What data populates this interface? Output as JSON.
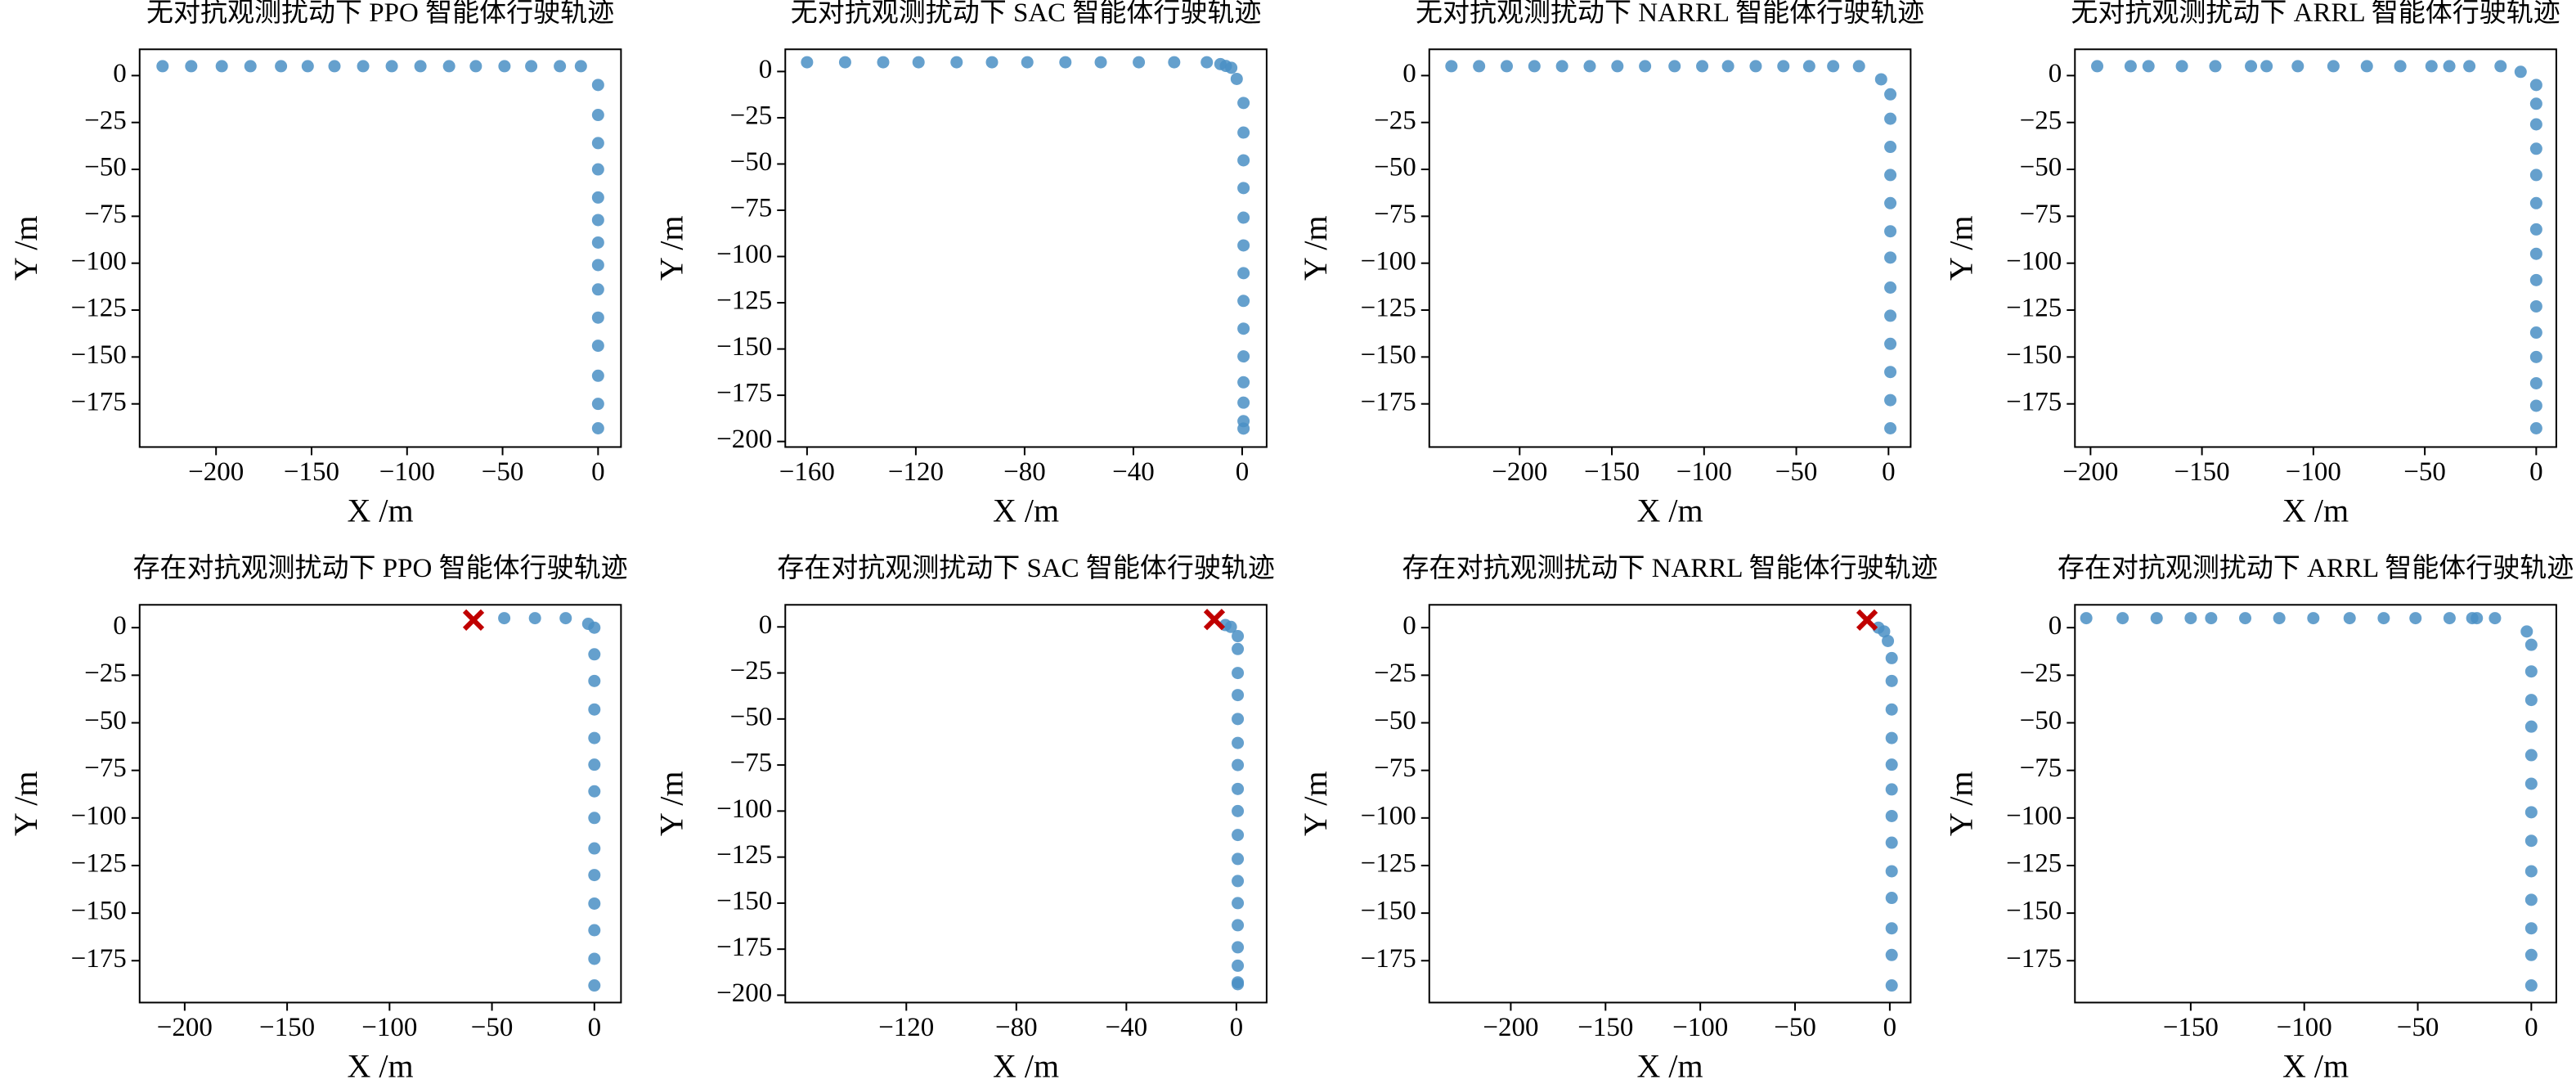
{
  "chart_data": [
    {
      "type": "scatter",
      "title": "无对抗观测扰动下 PPO 智能体行驶轨迹",
      "x_label": "X /m",
      "y_label": "Y /m",
      "xlim": [
        -240,
        12
      ],
      "ylim": [
        -198,
        14
      ],
      "xticks": [
        {
          "value": -200,
          "label": "−200"
        },
        {
          "value": -150,
          "label": "−150"
        },
        {
          "value": -100,
          "label": "−100"
        },
        {
          "value": -50,
          "label": "−50"
        },
        0
      ],
      "yticks": [
        0,
        {
          "value": -25,
          "label": "−25"
        },
        {
          "value": -50,
          "label": "−50"
        },
        {
          "value": -75,
          "label": "−75"
        },
        {
          "value": -100,
          "label": "−100"
        },
        {
          "value": -125,
          "label": "−125"
        },
        {
          "value": -150,
          "label": "−150"
        },
        {
          "value": -175,
          "label": "−175"
        }
      ],
      "series": [
        {
          "color": "#4a8fc4",
          "marker": "o",
          "x": [
            -228,
            -213,
            -197,
            -182,
            -166,
            -152,
            -138,
            -123,
            -108,
            -93,
            -78,
            -64,
            -49,
            -35,
            -20,
            -9,
            0,
            0,
            0,
            0,
            0,
            0,
            0,
            0,
            0,
            0,
            0,
            0,
            0,
            0
          ],
          "values": [
            5,
            5,
            5,
            5,
            5,
            5,
            5,
            5,
            5,
            5,
            5,
            5,
            5,
            5,
            5,
            5,
            -5,
            -21,
            -36,
            -50,
            -65,
            -77,
            -89,
            -101,
            -114,
            -129,
            -144,
            -160,
            -175,
            -188
          ]
        }
      ]
    },
    {
      "type": "scatter",
      "title": "无对抗观测扰动下 SAC 智能体行驶轨迹",
      "x_label": "X /m",
      "y_label": "Y /m",
      "xlim": [
        -168,
        9
      ],
      "ylim": [
        -203,
        12
      ],
      "xticks": [
        {
          "value": -160,
          "label": "−160"
        },
        {
          "value": -120,
          "label": "−120"
        },
        {
          "value": -80,
          "label": "−80"
        },
        {
          "value": -40,
          "label": "−40"
        },
        0
      ],
      "yticks": [
        0,
        {
          "value": -25,
          "label": "−25"
        },
        {
          "value": -50,
          "label": "−50"
        },
        {
          "value": -75,
          "label": "−75"
        },
        {
          "value": -100,
          "label": "−100"
        },
        {
          "value": -125,
          "label": "−125"
        },
        {
          "value": -150,
          "label": "−150"
        },
        {
          "value": -175,
          "label": "−175"
        },
        {
          "value": -200,
          "label": "−200"
        }
      ],
      "series": [
        {
          "color": "#4a8fc4",
          "marker": "o",
          "x": [
            -160,
            -146,
            -132,
            -119,
            -105,
            -92,
            -79,
            -65,
            -52,
            -38,
            -25,
            -13,
            -8,
            -6,
            -4,
            -2,
            0.5,
            0.5,
            0.5,
            0.5,
            0.5,
            0.5,
            0.5,
            0.5,
            0.5,
            0.5,
            0.5,
            0.5,
            0.5,
            0.5
          ],
          "values": [
            5,
            5,
            5,
            5,
            5,
            5,
            5,
            5,
            5,
            5,
            5,
            5,
            4,
            3,
            2,
            -4,
            -17,
            -33,
            -48,
            -63,
            -79,
            -94,
            -109,
            -124,
            -139,
            -154,
            -168,
            -179,
            -189,
            -193
          ]
        }
      ]
    },
    {
      "type": "scatter",
      "title": "无对抗观测扰动下 NARRL 智能体行驶轨迹",
      "x_label": "X /m",
      "y_label": "Y /m",
      "xlim": [
        -249,
        12
      ],
      "ylim": [
        -198,
        14
      ],
      "xticks": [
        {
          "value": -200,
          "label": "−200"
        },
        {
          "value": -150,
          "label": "−150"
        },
        {
          "value": -100,
          "label": "−100"
        },
        {
          "value": -50,
          "label": "−50"
        },
        0
      ],
      "yticks": [
        0,
        {
          "value": -25,
          "label": "−25"
        },
        {
          "value": -50,
          "label": "−50"
        },
        {
          "value": -75,
          "label": "−75"
        },
        {
          "value": -100,
          "label": "−100"
        },
        {
          "value": -125,
          "label": "−125"
        },
        {
          "value": -150,
          "label": "−150"
        },
        {
          "value": -175,
          "label": "−175"
        }
      ],
      "series": [
        {
          "color": "#4a8fc4",
          "marker": "o",
          "x": [
            -237,
            -222,
            -207,
            -192,
            -177,
            -162,
            -147,
            -132,
            -116,
            -101,
            -87,
            -72,
            -57,
            -43,
            -30,
            -16,
            -4,
            1,
            1,
            1,
            1,
            1,
            1,
            1,
            1,
            1,
            1,
            1,
            1,
            1
          ],
          "values": [
            5,
            5,
            5,
            5,
            5,
            5,
            5,
            5,
            5,
            5,
            5,
            5,
            5,
            5,
            5,
            5,
            -2,
            -10,
            -23,
            -38,
            -53,
            -68,
            -83,
            -97,
            -113,
            -128,
            -143,
            -158,
            -173,
            -188
          ]
        }
      ]
    },
    {
      "type": "scatter",
      "title": "无对抗观测扰动下 ARRL 智能体行驶轨迹",
      "x_label": "X /m",
      "y_label": "Y /m",
      "xlim": [
        -207,
        9
      ],
      "ylim": [
        -198,
        14
      ],
      "xticks": [
        {
          "value": -200,
          "label": "−200"
        },
        {
          "value": -150,
          "label": "−150"
        },
        {
          "value": -100,
          "label": "−100"
        },
        {
          "value": -50,
          "label": "−50"
        },
        0
      ],
      "yticks": [
        0,
        {
          "value": -25,
          "label": "−25"
        },
        {
          "value": -50,
          "label": "−50"
        },
        {
          "value": -75,
          "label": "−75"
        },
        {
          "value": -100,
          "label": "−100"
        },
        {
          "value": -125,
          "label": "−125"
        },
        {
          "value": -150,
          "label": "−150"
        },
        {
          "value": -175,
          "label": "−175"
        }
      ],
      "series": [
        {
          "color": "#4a8fc4",
          "marker": "o",
          "x": [
            -197,
            -182,
            -174,
            -159,
            -144,
            -128,
            -121,
            -107,
            -91,
            -76,
            -61,
            -47,
            -39,
            -30,
            -16,
            -7,
            0,
            0,
            0,
            0,
            0,
            0,
            0,
            0,
            0,
            0,
            0,
            0,
            0,
            0,
            0
          ],
          "values": [
            5,
            5,
            5,
            5,
            5,
            5,
            5,
            5,
            5,
            5,
            5,
            5,
            5,
            5,
            5,
            2,
            -5,
            -15,
            -26,
            -39,
            -53,
            -68,
            -82,
            -95,
            -109,
            -123,
            -137,
            -150,
            -164,
            -176,
            -188
          ]
        }
      ]
    },
    {
      "type": "scatter",
      "title": "存在对抗观测扰动下 PPO 智能体行驶轨迹",
      "x_label": "X /m",
      "y_label": "Y /m",
      "xlim": [
        -222,
        13
      ],
      "ylim": [
        -197,
        12
      ],
      "xticks": [
        {
          "value": -200,
          "label": "−200"
        },
        {
          "value": -150,
          "label": "−150"
        },
        {
          "value": -100,
          "label": "−100"
        },
        {
          "value": -50,
          "label": "−50"
        },
        0
      ],
      "yticks": [
        0,
        {
          "value": -25,
          "label": "−25"
        },
        {
          "value": -50,
          "label": "−50"
        },
        {
          "value": -75,
          "label": "−75"
        },
        {
          "value": -100,
          "label": "−100"
        },
        {
          "value": -125,
          "label": "−125"
        },
        {
          "value": -150,
          "label": "−150"
        },
        {
          "value": -175,
          "label": "−175"
        }
      ],
      "series": [
        {
          "color": "#4a8fc4",
          "marker": "o",
          "x": [
            -44,
            -29,
            -14,
            -3,
            0,
            0,
            0,
            0,
            0,
            0,
            0,
            0,
            0,
            0,
            0,
            0,
            0,
            0
          ],
          "values": [
            5,
            5,
            5,
            2,
            0,
            -14,
            -28,
            -43,
            -58,
            -72,
            -86,
            -100,
            -116,
            -130,
            -145,
            -159,
            -174,
            -188
          ]
        },
        {
          "color": "#c00000",
          "marker": "x",
          "x": [
            -59
          ],
          "values": [
            4
          ]
        }
      ]
    },
    {
      "type": "scatter",
      "title": "存在对抗观测扰动下 SAC 智能体行驶轨迹",
      "x_label": "X /m",
      "y_label": "Y /m",
      "xlim": [
        -164,
        11
      ],
      "ylim": [
        -204,
        12
      ],
      "xticks": [
        {
          "value": -120,
          "label": "−120"
        },
        {
          "value": -80,
          "label": "−80"
        },
        {
          "value": -40,
          "label": "−40"
        },
        0
      ],
      "yticks": [
        0,
        {
          "value": -25,
          "label": "−25"
        },
        {
          "value": -50,
          "label": "−50"
        },
        {
          "value": -75,
          "label": "−75"
        },
        {
          "value": -100,
          "label": "−100"
        },
        {
          "value": -125,
          "label": "−125"
        },
        {
          "value": -150,
          "label": "−150"
        },
        {
          "value": -175,
          "label": "−175"
        },
        {
          "value": -200,
          "label": "−200"
        }
      ],
      "series": [
        {
          "color": "#4a8fc4",
          "marker": "o",
          "x": [
            -4,
            -2,
            0.5,
            0.5,
            0.5,
            0.5,
            0.5,
            0.5,
            0.5,
            0.5,
            0.5,
            0.5,
            0.5,
            0.5,
            0.5,
            0.5,
            0.5,
            0.5,
            0.5,
            0.5
          ],
          "values": [
            1,
            0,
            -5,
            -12,
            -25,
            -37,
            -50,
            -63,
            -75,
            -88,
            -100,
            -113,
            -126,
            -138,
            -150,
            -162,
            -174,
            -184,
            -193,
            -194
          ]
        },
        {
          "color": "#c00000",
          "marker": "x",
          "x": [
            -8
          ],
          "values": [
            4
          ]
        }
      ]
    },
    {
      "type": "scatter",
      "title": "存在对抗观测扰动下 NARRL 智能体行驶轨迹",
      "x_label": "X /m",
      "y_label": "Y /m",
      "xlim": [
        -243,
        11
      ],
      "ylim": [
        -197,
        12
      ],
      "xticks": [
        {
          "value": -200,
          "label": "−200"
        },
        {
          "value": -150,
          "label": "−150"
        },
        {
          "value": -100,
          "label": "−100"
        },
        {
          "value": -50,
          "label": "−50"
        },
        0
      ],
      "yticks": [
        0,
        {
          "value": -25,
          "label": "−25"
        },
        {
          "value": -50,
          "label": "−50"
        },
        {
          "value": -75,
          "label": "−75"
        },
        {
          "value": -100,
          "label": "−100"
        },
        {
          "value": -125,
          "label": "−125"
        },
        {
          "value": -150,
          "label": "−150"
        },
        {
          "value": -175,
          "label": "−175"
        }
      ],
      "series": [
        {
          "color": "#4a8fc4",
          "marker": "o",
          "x": [
            -6,
            -3,
            -1,
            1,
            1,
            1,
            1,
            1,
            1,
            1,
            1,
            1,
            1,
            1,
            1,
            1
          ],
          "values": [
            0,
            -2,
            -7,
            -16,
            -28,
            -43,
            -58,
            -72,
            -85,
            -99,
            -113,
            -128,
            -142,
            -158,
            -172,
            -188
          ]
        },
        {
          "color": "#c00000",
          "marker": "x",
          "x": [
            -12
          ],
          "values": [
            4
          ]
        }
      ]
    },
    {
      "type": "scatter",
      "title": "存在对抗观测扰动下 ARRL 智能体行驶轨迹",
      "x_label": "X /m",
      "y_label": "Y /m",
      "xlim": [
        -201,
        11
      ],
      "ylim": [
        -197,
        12
      ],
      "xticks": [
        {
          "value": -150,
          "label": "−150"
        },
        {
          "value": -100,
          "label": "−100"
        },
        {
          "value": -50,
          "label": "−50"
        },
        0
      ],
      "yticks": [
        0,
        {
          "value": -25,
          "label": "−25"
        },
        {
          "value": -50,
          "label": "−50"
        },
        {
          "value": -75,
          "label": "−75"
        },
        {
          "value": -100,
          "label": "−100"
        },
        {
          "value": -125,
          "label": "−125"
        },
        {
          "value": -150,
          "label": "−150"
        },
        {
          "value": -175,
          "label": "−175"
        }
      ],
      "series": [
        {
          "color": "#4a8fc4",
          "marker": "o",
          "x": [
            -196,
            -180,
            -165,
            -150,
            -141,
            -126,
            -111,
            -96,
            -80,
            -65,
            -51,
            -36,
            -26,
            -24,
            -16,
            -2,
            0,
            0,
            0,
            0,
            0,
            0,
            0,
            0,
            0,
            0,
            0,
            0,
            0
          ],
          "values": [
            5,
            5,
            5,
            5,
            5,
            5,
            5,
            5,
            5,
            5,
            5,
            5,
            5,
            5,
            5,
            -2,
            -9,
            -23,
            -38,
            -52,
            -67,
            -82,
            -97,
            -112,
            -128,
            -143,
            -158,
            -172,
            -188
          ]
        }
      ]
    }
  ]
}
